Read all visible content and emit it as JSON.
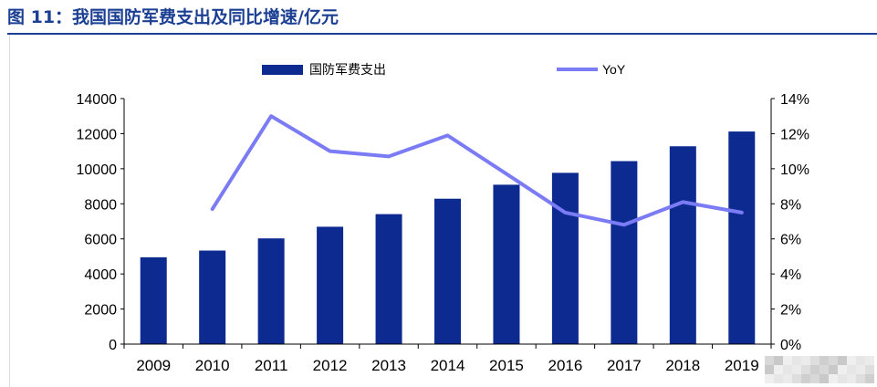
{
  "figure": {
    "title": "图 11：我国国防军费支出及同比增速/亿元"
  },
  "chart_data": {
    "type": "bar+line",
    "categories": [
      "2009",
      "2010",
      "2011",
      "2012",
      "2013",
      "2014",
      "2015",
      "2016",
      "2017",
      "2018",
      "2019"
    ],
    "series": [
      {
        "name": "国防军费支出",
        "type": "bar",
        "axis": "left",
        "color": "#0d2a91",
        "values": [
          4951,
          5333,
          6028,
          6692,
          7411,
          8290,
          9088,
          9766,
          10433,
          11280,
          12122
        ]
      },
      {
        "name": "YoY",
        "type": "line",
        "axis": "right",
        "color": "#7b7cf5",
        "values": [
          null,
          0.077,
          0.13,
          0.11,
          0.107,
          0.119,
          0.097,
          0.075,
          0.068,
          0.081,
          0.075
        ]
      }
    ],
    "y_left": {
      "min": 0,
      "max": 14000,
      "ticks": [
        "0",
        "2000",
        "4000",
        "6000",
        "8000",
        "10000",
        "12000",
        "14000"
      ]
    },
    "y_right": {
      "min": 0,
      "max": 0.14,
      "ticks": [
        "0%",
        "2%",
        "4%",
        "6%",
        "8%",
        "10%",
        "12%",
        "14%"
      ]
    },
    "legend": {
      "placement": "top-center",
      "items": [
        "国防军费支出",
        "YoY"
      ]
    },
    "grid": false
  }
}
